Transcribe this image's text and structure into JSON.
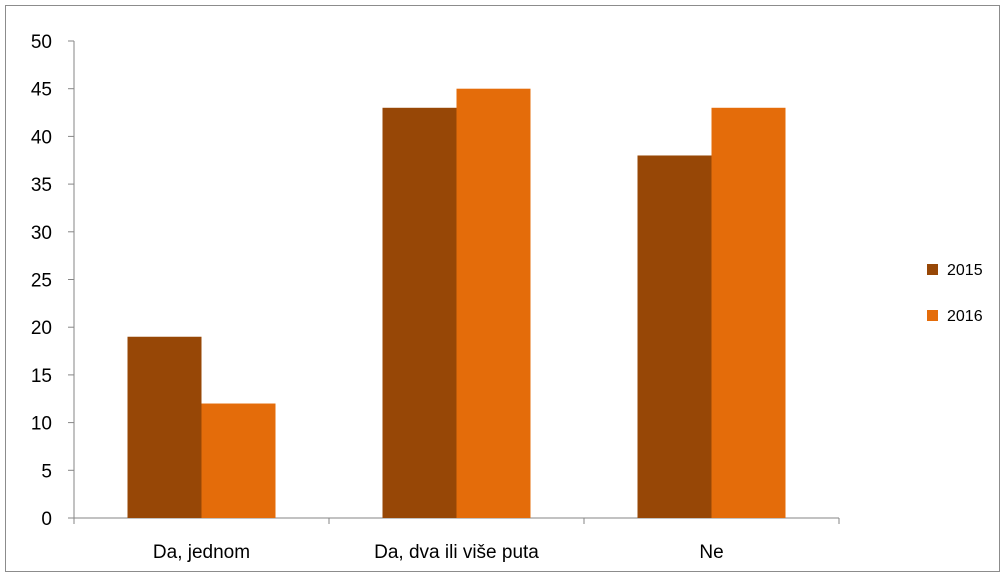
{
  "chart_data": {
    "type": "bar",
    "categories": [
      "Da, jednom",
      "Da, dva ili više puta",
      "Ne"
    ],
    "series": [
      {
        "name": "2015",
        "values": [
          19,
          43,
          38
        ],
        "color": "#974706"
      },
      {
        "name": "2016",
        "values": [
          12,
          45,
          43
        ],
        "color": "#E46C0A"
      }
    ],
    "ylim": [
      0,
      50
    ],
    "yticks": [
      0,
      5,
      10,
      15,
      20,
      25,
      30,
      35,
      40,
      45,
      50
    ],
    "grid": false,
    "legend_position": "right"
  }
}
